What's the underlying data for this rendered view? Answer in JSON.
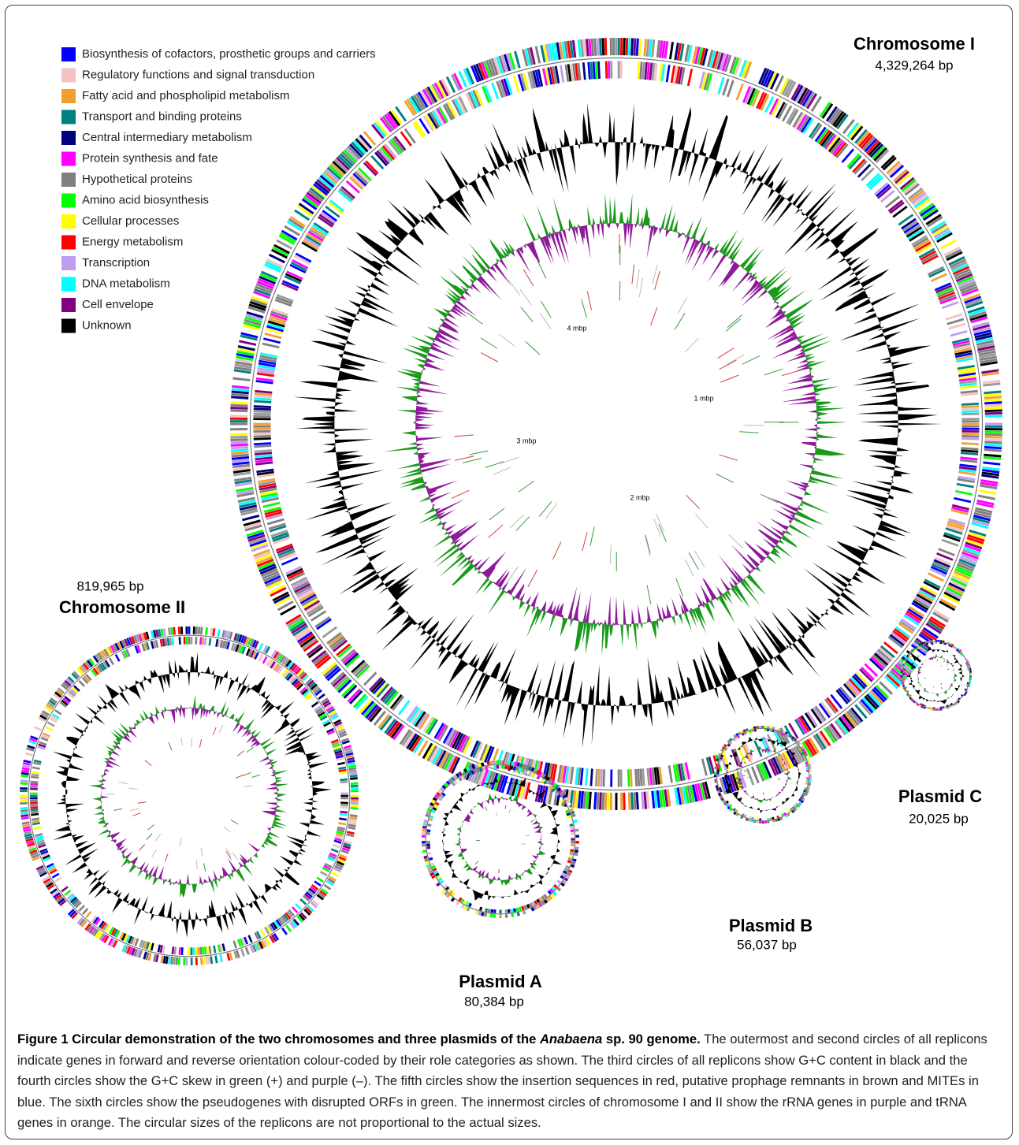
{
  "legend": [
    {
      "label": "Biosynthesis of cofactors, prosthetic groups and carriers",
      "color": "#0000ff"
    },
    {
      "label": "Regulatory functions and signal transduction",
      "color": "#f4c2c2"
    },
    {
      "label": "Fatty acid and phospholipid metabolism",
      "color": "#f0a030"
    },
    {
      "label": "Transport and binding proteins",
      "color": "#008080"
    },
    {
      "label": "Central intermediary metabolism",
      "color": "#000080"
    },
    {
      "label": "Protein synthesis and fate",
      "color": "#ff00ff"
    },
    {
      "label": "Hypothetical proteins",
      "color": "#808080"
    },
    {
      "label": "Amino acid biosynthesis",
      "color": "#00ff00"
    },
    {
      "label": "Cellular processes",
      "color": "#ffff00"
    },
    {
      "label": "Energy metabolism",
      "color": "#ff0000"
    },
    {
      "label": "Transcription",
      "color": "#c09cf0"
    },
    {
      "label": "DNA metabolism",
      "color": "#00ffff"
    },
    {
      "label": "Cell envelope",
      "color": "#800080"
    },
    {
      "label": "Unknown",
      "color": "#000000"
    }
  ],
  "replicons": [
    {
      "name": "Chromosome I",
      "size": "4,329,264 bp"
    },
    {
      "name": "Chromosome II",
      "size": "819,965 bp"
    },
    {
      "name": "Plasmid A",
      "size": "80,384 bp"
    },
    {
      "name": "Plasmid B",
      "size": "56,037 bp"
    },
    {
      "name": "Plasmid C",
      "size": "20,025 bp"
    }
  ],
  "scale_labels": [
    "4 mbp",
    "1 mbp",
    "3 mbp",
    "2 mbp"
  ],
  "caption": {
    "title": [
      "Figure 1 Circular demonstration of the two chromosomes and three plasmids of the ",
      "Anabaena",
      " sp. 90 genome."
    ],
    "text": " The outermost and second circles of all replicons indicate genes in forward and reverse orientation colour-coded by their role categories as shown. The third circles of all replicons show G+C content in black and the fourth circles show the G+C skew in green (+) and purple (–). The fifth circles show the insertion sequences in red, putative prophage remnants in brown and MITEs in blue. The sixth circles show the pseudogenes with disrupted ORFs in green. The innermost circles of chromosome I and II show the rRNA genes in purple and tRNA genes in orange. The circular sizes of the replicons are not proportional to the actual sizes."
  }
}
